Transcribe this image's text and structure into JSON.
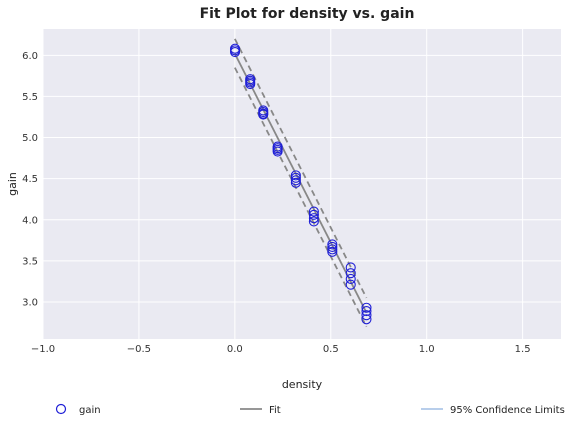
{
  "chart_data": {
    "type": "scatter",
    "title": "Fit Plot for density vs. gain",
    "xlabel": "density",
    "ylabel": "gain",
    "xlim": [
      -1.0,
      1.7
    ],
    "ylim": [
      2.55,
      6.32
    ],
    "xticks": [
      -1.0,
      -0.5,
      0.0,
      0.5,
      1.0,
      1.5
    ],
    "xtick_labels": [
      "−1.0",
      "−0.5",
      "0.0",
      "0.5",
      "1.0",
      "1.5"
    ],
    "yticks": [
      3.0,
      3.5,
      4.0,
      4.5,
      5.0,
      5.5,
      6.0
    ],
    "ytick_labels": [
      "3.0",
      "3.5",
      "4.0",
      "4.5",
      "5.0",
      "5.5",
      "6.0"
    ],
    "grid": true,
    "legend_position": "bottom",
    "series": [
      {
        "name": "gain",
        "kind": "points",
        "color": "#1f1fd6",
        "points": [
          [
            0.001,
            6.08
          ],
          [
            0.001,
            6.06
          ],
          [
            0.001,
            6.04
          ],
          [
            0.08,
            5.71
          ],
          [
            0.08,
            5.69
          ],
          [
            0.08,
            5.67
          ],
          [
            0.08,
            5.65
          ],
          [
            0.148,
            5.33
          ],
          [
            0.148,
            5.31
          ],
          [
            0.148,
            5.29
          ],
          [
            0.148,
            5.28
          ],
          [
            0.223,
            4.89
          ],
          [
            0.223,
            4.87
          ],
          [
            0.223,
            4.85
          ],
          [
            0.223,
            4.83
          ],
          [
            0.318,
            4.54
          ],
          [
            0.318,
            4.51
          ],
          [
            0.318,
            4.48
          ],
          [
            0.318,
            4.45
          ],
          [
            0.412,
            4.1
          ],
          [
            0.412,
            4.06
          ],
          [
            0.412,
            4.02
          ],
          [
            0.412,
            3.98
          ],
          [
            0.508,
            3.7
          ],
          [
            0.508,
            3.67
          ],
          [
            0.508,
            3.64
          ],
          [
            0.508,
            3.61
          ],
          [
            0.604,
            3.42
          ],
          [
            0.604,
            3.35
          ],
          [
            0.604,
            3.28
          ],
          [
            0.604,
            3.21
          ],
          [
            0.686,
            2.93
          ],
          [
            0.686,
            2.89
          ],
          [
            0.686,
            2.84
          ],
          [
            0.686,
            2.79
          ]
        ]
      },
      {
        "name": "Fit",
        "kind": "line",
        "color": "#888888",
        "points": [
          [
            0.0,
            6.02
          ],
          [
            0.686,
            2.87
          ]
        ]
      },
      {
        "name": "95% Confidence Limits",
        "kind": "band",
        "color": "#aec7e8",
        "upper": [
          [
            0.0,
            6.2
          ],
          [
            0.686,
            3.05
          ]
        ],
        "lower": [
          [
            0.0,
            5.85
          ],
          [
            0.686,
            2.7
          ]
        ]
      }
    ],
    "legend": [
      "gain",
      "Fit",
      "95% Confidence Limits"
    ]
  },
  "colors": {
    "plot_background": "#eaeaf2",
    "grid": "#ffffff",
    "fit_line": "#888888",
    "ci_legend": "#aec7e8",
    "marker": "#1f1fd6"
  }
}
